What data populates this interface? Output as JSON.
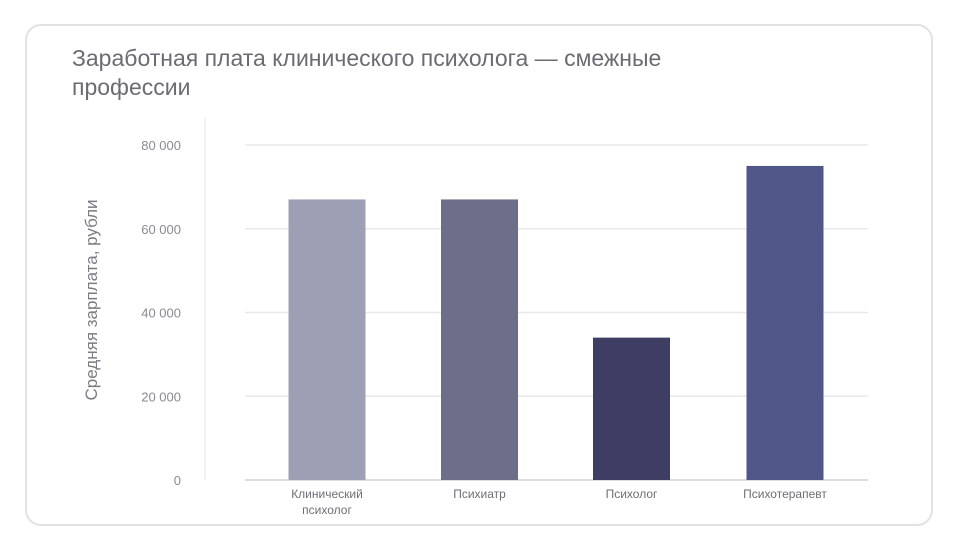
{
  "chart_data": {
    "type": "bar",
    "title": "Заработная плата клинического психолога — смежные профессии",
    "xlabel": "",
    "ylabel": "Средняя зарплата, рубли",
    "ylim": [
      0,
      80000
    ],
    "yticks": [
      0,
      20000,
      40000,
      60000,
      80000
    ],
    "ytick_labels": [
      "0",
      "20 000",
      "40 000",
      "60 000",
      "80 000"
    ],
    "categories": [
      [
        "Клинический",
        "психолог"
      ],
      [
        "Психиатр"
      ],
      [
        "Психолог"
      ],
      [
        "Психотерапевт"
      ]
    ],
    "values": [
      67000,
      67000,
      34000,
      75000
    ],
    "colors": [
      "#9e9fb5",
      "#6c6e8a",
      "#3e3d63",
      "#515689"
    ],
    "grid": true
  }
}
